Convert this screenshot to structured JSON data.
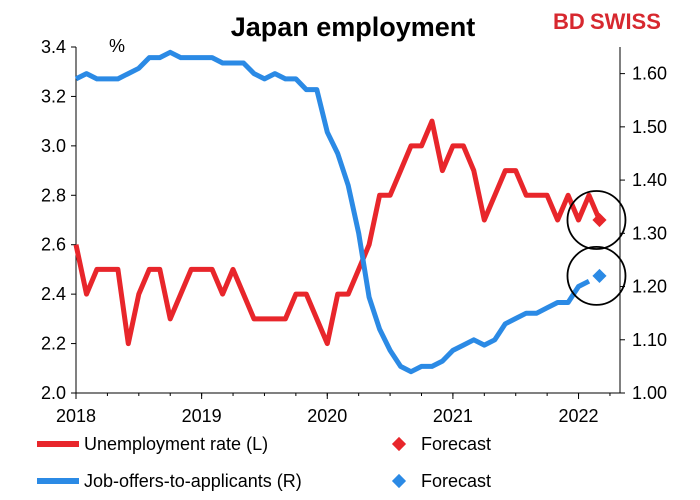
{
  "brand": {
    "logo_text_a": "BD",
    "logo_text_b": "SWISS"
  },
  "chart_data": {
    "type": "line",
    "title": "Japan employment",
    "left_axis": {
      "unit": "%",
      "ylim": [
        2.0,
        3.4
      ],
      "ticks": [
        "2.0",
        "2.2",
        "2.4",
        "2.6",
        "2.8",
        "3.0",
        "3.2",
        "3.4"
      ]
    },
    "right_axis": {
      "ylim": [
        1.0,
        1.65
      ],
      "ticks": [
        "1.00",
        "1.10",
        "1.20",
        "1.30",
        "1.40",
        "1.50",
        "1.60"
      ]
    },
    "x_axis": {
      "xlim": [
        2018.0,
        2022.33
      ],
      "ticks": [
        "2018",
        "2019",
        "2020",
        "2021",
        "2022"
      ]
    },
    "grid": false,
    "legend_placement": "bottom",
    "series": [
      {
        "name": "Unemployment rate (L)",
        "axis": "left",
        "color": "#e8262b",
        "start": "2018-01",
        "values": [
          2.6,
          2.4,
          2.5,
          2.5,
          2.5,
          2.2,
          2.4,
          2.5,
          2.5,
          2.3,
          2.4,
          2.5,
          2.5,
          2.5,
          2.4,
          2.5,
          2.4,
          2.3,
          2.3,
          2.3,
          2.3,
          2.4,
          2.4,
          2.3,
          2.2,
          2.4,
          2.4,
          2.5,
          2.6,
          2.8,
          2.8,
          2.9,
          3.0,
          3.0,
          3.1,
          2.9,
          3.0,
          3.0,
          2.9,
          2.7,
          2.8,
          2.9,
          2.9,
          2.8,
          2.8,
          2.8,
          2.7,
          2.8,
          2.7,
          2.8,
          2.7
        ]
      },
      {
        "name": "Forecast",
        "axis": "left",
        "color": "#e8262b",
        "points": [
          {
            "x": "2022-03",
            "y": 2.7
          }
        ]
      },
      {
        "name": "Job-offers-to-applicants (R)",
        "axis": "right",
        "color": "#2b8ae5",
        "start": "2018-01",
        "values": [
          1.59,
          1.6,
          1.59,
          1.59,
          1.59,
          1.6,
          1.61,
          1.63,
          1.63,
          1.64,
          1.63,
          1.63,
          1.63,
          1.63,
          1.62,
          1.62,
          1.62,
          1.6,
          1.59,
          1.6,
          1.59,
          1.59,
          1.57,
          1.57,
          1.49,
          1.45,
          1.39,
          1.3,
          1.18,
          1.12,
          1.08,
          1.05,
          1.04,
          1.05,
          1.05,
          1.06,
          1.08,
          1.09,
          1.1,
          1.09,
          1.1,
          1.13,
          1.14,
          1.15,
          1.15,
          1.16,
          1.17,
          1.17,
          1.2,
          1.21
        ]
      },
      {
        "name": "Forecast",
        "axis": "right",
        "color": "#2b8ae5",
        "points": [
          {
            "x": "2022-03",
            "y": 1.22
          }
        ]
      }
    ],
    "annotations": [
      "circle around unemployment forecast",
      "circle around job-offers forecast"
    ]
  }
}
